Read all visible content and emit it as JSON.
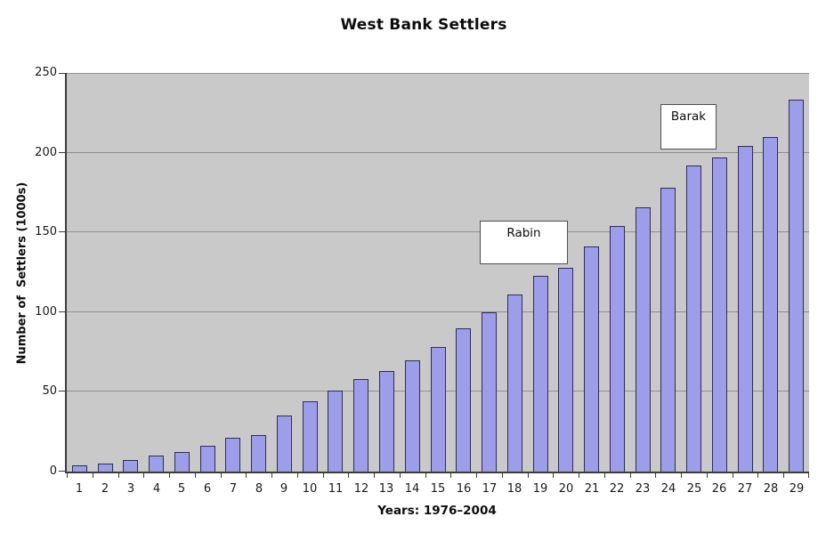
{
  "colors": {
    "bar_fill": "#9d9dec",
    "bar_border": "#2e2e52",
    "plot_bg": "#c9c9c9",
    "gridline": "#8f8f8f",
    "axis": "#3c3c3c",
    "annotation_bg": "#ffffff",
    "annotation_border": "#4f4f4f"
  },
  "chart_data": {
    "type": "bar",
    "title": "West Bank Settlers",
    "xlabel": "Years: 1976–2004",
    "ylabel": "Number of  Settlers (1000s)",
    "categories": [
      "1",
      "2",
      "3",
      "4",
      "5",
      "6",
      "7",
      "8",
      "9",
      "10",
      "11",
      "12",
      "13",
      "14",
      "15",
      "16",
      "17",
      "18",
      "19",
      "20",
      "21",
      "22",
      "23",
      "24",
      "25",
      "26",
      "27",
      "28",
      "29"
    ],
    "values": [
      4,
      5,
      7,
      10,
      12,
      16,
      21,
      23,
      35,
      44,
      51,
      58,
      63,
      70,
      78,
      90,
      100,
      111,
      123,
      128,
      141,
      154,
      166,
      178,
      192,
      197,
      204,
      210,
      233
    ],
    "ylim": [
      0,
      250
    ],
    "yticks": [
      0,
      50,
      100,
      150,
      200,
      250
    ],
    "grid": true,
    "legend": "none",
    "plot_background": "gray",
    "annotations": [
      {
        "label": "Rabin",
        "anchor_years": [
          17,
          18
        ],
        "anchor_value_top": 158
      },
      {
        "label": "Barak",
        "anchor_years": [
          24,
          25
        ],
        "anchor_value_top": 230
      }
    ]
  }
}
